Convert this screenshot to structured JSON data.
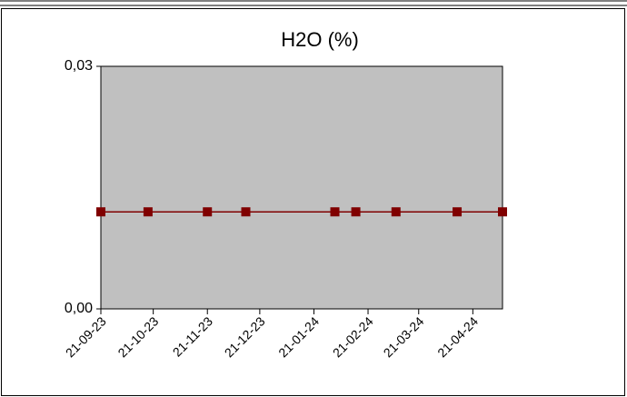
{
  "chart_data": {
    "type": "line",
    "title": "H2O (%)",
    "x": [
      "2023-09-21",
      "2023-10-18",
      "2023-11-21",
      "2023-12-13",
      "2024-02-02",
      "2024-02-14",
      "2024-03-08",
      "2024-04-12",
      "2024-05-08"
    ],
    "series": [
      {
        "name": "H2O",
        "color": "#800000",
        "values": [
          0.012,
          0.012,
          0.012,
          0.012,
          0.012,
          0.012,
          0.012,
          0.012,
          0.012
        ]
      }
    ],
    "xlim": [
      "2023-09-21",
      "2024-05-08"
    ],
    "xticks": [
      {
        "value": "2023-09-21",
        "label": "21-09-23"
      },
      {
        "value": "2023-10-21",
        "label": "21-10-23"
      },
      {
        "value": "2023-11-21",
        "label": "21-11-23"
      },
      {
        "value": "2023-12-21",
        "label": "21-12-23"
      },
      {
        "value": "2024-01-21",
        "label": "21-01-24"
      },
      {
        "value": "2024-02-21",
        "label": "21-02-24"
      },
      {
        "value": "2024-03-21",
        "label": "21-03-24"
      },
      {
        "value": "2024-04-21",
        "label": "21-04-24"
      }
    ],
    "ylim": [
      0,
      0.03
    ],
    "yticks": [
      {
        "value": 0,
        "label": "0,00"
      },
      {
        "value": 0.03,
        "label": "0,03"
      }
    ],
    "plot_background": "#c0c0c0",
    "grid": false
  }
}
